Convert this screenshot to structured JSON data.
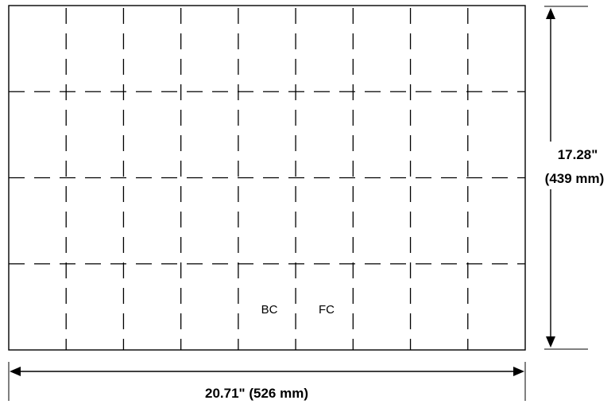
{
  "sheet": {
    "vertical_fold_count": 8,
    "horizontal_fold_count": 3
  },
  "panel_labels": {
    "back_cover": "BC",
    "front_cover": "FC"
  },
  "dimensions": {
    "height_imperial": "17.28\"",
    "height_metric": "(439 mm)",
    "width_label": "20.71\" (526 mm)"
  },
  "colors": {
    "line": "#000000",
    "background": "#ffffff"
  }
}
